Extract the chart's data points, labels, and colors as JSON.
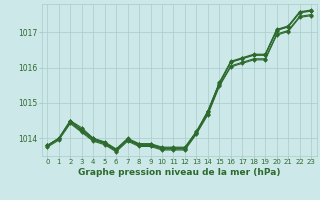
{
  "title": "Graphe pression niveau de la mer (hPa)",
  "bg_color": "#cce8e8",
  "grid_color": "#aacccc",
  "line_color": "#2d6a2d",
  "xlim": [
    -0.5,
    23.5
  ],
  "ylim": [
    1013.5,
    1017.8
  ],
  "xticks": [
    0,
    1,
    2,
    3,
    4,
    5,
    6,
    7,
    8,
    9,
    10,
    11,
    12,
    13,
    14,
    15,
    16,
    17,
    18,
    19,
    20,
    21,
    22,
    23
  ],
  "yticks": [
    1014,
    1015,
    1016,
    1017
  ],
  "figsize": [
    3.2,
    2.0
  ],
  "dpi": 100,
  "series": [
    [
      1013.8,
      1014.0,
      1014.5,
      1014.3,
      1014.0,
      1013.9,
      1013.7,
      1014.0,
      1013.85,
      1013.85,
      1013.75,
      1013.75,
      1013.75,
      1014.2,
      1014.75,
      1015.55,
      1016.15,
      1016.25,
      1016.35,
      1016.35,
      1017.05,
      1017.15,
      1017.55,
      1017.6
    ],
    [
      1013.8,
      1014.0,
      1014.5,
      1014.25,
      1014.0,
      1013.88,
      1013.68,
      1013.98,
      1013.83,
      1013.83,
      1013.73,
      1013.73,
      1013.73,
      1014.18,
      1014.78,
      1015.58,
      1016.18,
      1016.28,
      1016.38,
      1016.38,
      1017.08,
      1017.18,
      1017.58,
      1017.63
    ],
    [
      1013.78,
      1013.98,
      1014.48,
      1014.23,
      1013.98,
      1013.86,
      1013.66,
      1013.96,
      1013.81,
      1013.81,
      1013.71,
      1013.71,
      1013.71,
      1014.16,
      1014.76,
      1015.56,
      1016.16,
      1016.26,
      1016.36,
      1016.36,
      1017.06,
      1017.16,
      1017.56,
      1017.61
    ],
    [
      1013.8,
      1014.0,
      1014.45,
      1014.2,
      1013.95,
      1013.85,
      1013.65,
      1013.95,
      1013.8,
      1013.8,
      1013.7,
      1013.7,
      1013.7,
      1014.15,
      1014.7,
      1015.5,
      1016.05,
      1016.15,
      1016.25,
      1016.25,
      1016.95,
      1017.05,
      1017.45,
      1017.5
    ],
    [
      1013.75,
      1013.95,
      1014.42,
      1014.17,
      1013.92,
      1013.82,
      1013.62,
      1013.92,
      1013.77,
      1013.77,
      1013.67,
      1013.67,
      1013.67,
      1014.12,
      1014.67,
      1015.47,
      1016.02,
      1016.12,
      1016.22,
      1016.22,
      1016.92,
      1017.02,
      1017.42,
      1017.47
    ]
  ]
}
